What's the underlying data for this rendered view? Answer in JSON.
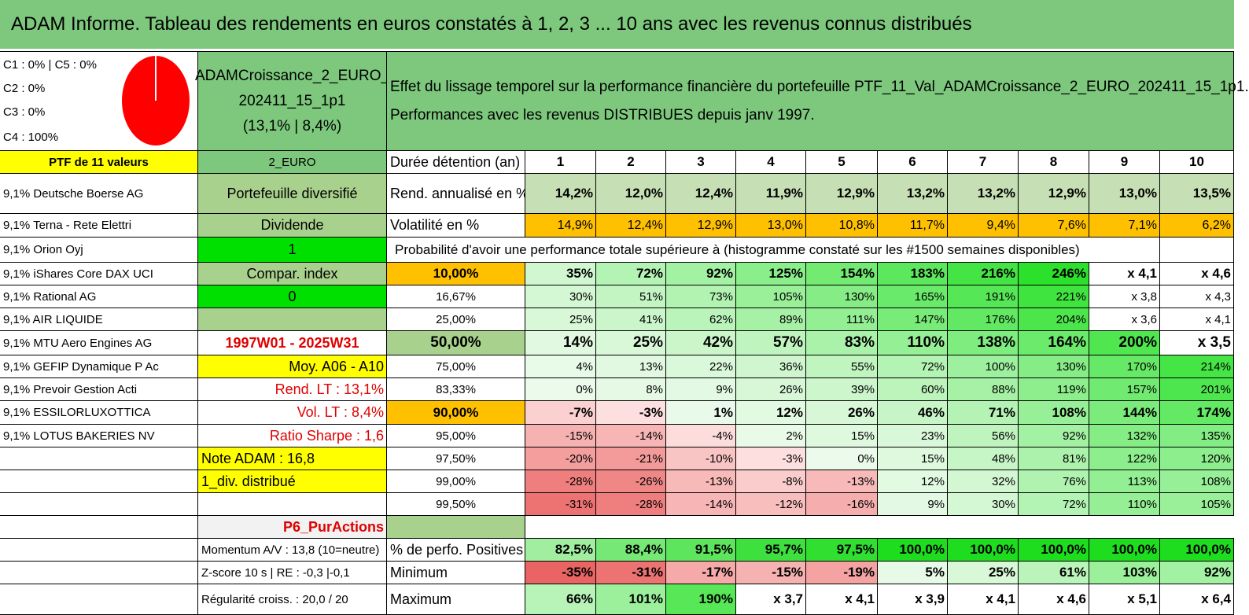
{
  "title": "ADAM Informe. Tableau des rendements en euros constatés à 1, 2, 3 ... 10 ans avec les revenus connus distribués",
  "composition": [
    "C1 : 0% | C5 : 0%",
    "C2 : 0%",
    "C3 : 0%",
    "C4 : 100%"
  ],
  "pie": {
    "C4": 100,
    "color": "#ff0000"
  },
  "portfolio": {
    "name_line1": "ADAMCroissance_2_EURO_",
    "name_line2": "202411_15_1p1",
    "name_line3": "(13,1% | 8,4%)"
  },
  "description": {
    "line1": "Effet du lissage temporel sur la performance financière du portefeuille PTF_11_Val_ADAMCroissance_2_EURO_202411_15_1p1.",
    "line2": "Performances avec les revenus DISTRIBUES depuis janv 1997."
  },
  "ptf_label": "PTF de 11 valeurs",
  "currency_label": "2_EURO",
  "holdings": [
    "9,1% Deutsche Boerse AG",
    "9,1% Terna - Rete Elettri",
    "9,1% Orion Oyj",
    "9,1% iShares Core DAX UCI",
    "9,1% Rational AG",
    "9,1% AIR LIQUIDE",
    "9,1% MTU Aero Engines AG",
    "9,1% GEFIP Dynamique P Ac",
    "9,1% Prevoir Gestion Acti",
    "9,1% ESSILORLUXOTTICA",
    "9,1% LOTUS BAKERIES NV"
  ],
  "info": [
    "Portefeuille diversifié",
    "Dividende",
    "1",
    "Compar. index",
    "0",
    "",
    "1997W01 - 2025W31",
    "Moy. A06 - A10",
    "Rend. LT : 13,1%",
    "Vol. LT : 8,4%",
    "Ratio Sharpe : 1,6",
    "Note ADAM : 16,8",
    "1_div. distribué",
    "",
    "P6_PurActions",
    "Momentum A/V : 13,8 (10=neutre)",
    "Z-score 10 s | RE : -0,3 |-0,1",
    "Régularité croiss. : 20,0 / 20"
  ],
  "table": {
    "duration_label": "Durée détention (an)",
    "years": [
      "1",
      "2",
      "3",
      "4",
      "5",
      "6",
      "7",
      "8",
      "9",
      "10"
    ],
    "rend_label": "Rend. annualisé en %",
    "rend": [
      "14,2%",
      "12,0%",
      "12,4%",
      "11,9%",
      "12,9%",
      "13,2%",
      "13,2%",
      "12,9%",
      "13,0%",
      "13,5%"
    ],
    "vol_label": "Volatilité en %",
    "vol": [
      "14,9%",
      "12,4%",
      "12,9%",
      "13,0%",
      "10,8%",
      "11,7%",
      "9,4%",
      "7,6%",
      "7,1%",
      "6,2%"
    ],
    "prob_header": "Probabilité d'avoir une performance totale supérieure à (histogramme constaté sur les #1500 semaines disponibles)",
    "prob_rows": [
      {
        "p": "10,00%",
        "v": [
          "35%",
          "72%",
          "92%",
          "125%",
          "154%",
          "183%",
          "216%",
          "246%",
          "x 4,1",
          "x 4,6"
        ]
      },
      {
        "p": "16,67%",
        "v": [
          "30%",
          "51%",
          "73%",
          "105%",
          "130%",
          "165%",
          "191%",
          "221%",
          "x 3,8",
          "x 4,3"
        ]
      },
      {
        "p": "25,00%",
        "v": [
          "25%",
          "41%",
          "62%",
          "89%",
          "111%",
          "147%",
          "176%",
          "204%",
          "x 3,6",
          "x 4,1"
        ]
      },
      {
        "p": "50,00%",
        "v": [
          "14%",
          "25%",
          "42%",
          "57%",
          "83%",
          "110%",
          "138%",
          "164%",
          "200%",
          "x 3,5"
        ]
      },
      {
        "p": "75,00%",
        "v": [
          "4%",
          "13%",
          "22%",
          "36%",
          "55%",
          "72%",
          "100%",
          "130%",
          "170%",
          "214%"
        ]
      },
      {
        "p": "83,33%",
        "v": [
          "0%",
          "8%",
          "9%",
          "26%",
          "39%",
          "60%",
          "88%",
          "119%",
          "157%",
          "201%"
        ]
      },
      {
        "p": "90,00%",
        "v": [
          "-7%",
          "-3%",
          "1%",
          "12%",
          "26%",
          "46%",
          "71%",
          "108%",
          "144%",
          "174%"
        ]
      },
      {
        "p": "95,00%",
        "v": [
          "-15%",
          "-14%",
          "-4%",
          "2%",
          "15%",
          "23%",
          "56%",
          "92%",
          "132%",
          "135%"
        ]
      },
      {
        "p": "97,50%",
        "v": [
          "-20%",
          "-21%",
          "-10%",
          "-3%",
          "0%",
          "15%",
          "48%",
          "81%",
          "122%",
          "120%"
        ]
      },
      {
        "p": "99,00%",
        "v": [
          "-28%",
          "-26%",
          "-13%",
          "-8%",
          "-13%",
          "12%",
          "32%",
          "76%",
          "113%",
          "108%"
        ]
      },
      {
        "p": "99,50%",
        "v": [
          "-31%",
          "-28%",
          "-14%",
          "-12%",
          "-16%",
          "9%",
          "30%",
          "72%",
          "110%",
          "105%"
        ]
      }
    ],
    "pos_label": "% de perfo. Positives",
    "pos": [
      "82,5%",
      "88,4%",
      "91,5%",
      "95,7%",
      "97,5%",
      "100,0%",
      "100,0%",
      "100,0%",
      "100,0%",
      "100,0%"
    ],
    "min_label": "Minimum",
    "min": [
      "-35%",
      "-31%",
      "-17%",
      "-15%",
      "-19%",
      "5%",
      "25%",
      "61%",
      "103%",
      "92%"
    ],
    "max_label": "Maximum",
    "max": [
      "66%",
      "101%",
      "190%",
      "x 3,7",
      "x 4,1",
      "x 3,9",
      "x 4,1",
      "x 4,6",
      "x 5,1",
      "x 6,4"
    ]
  }
}
